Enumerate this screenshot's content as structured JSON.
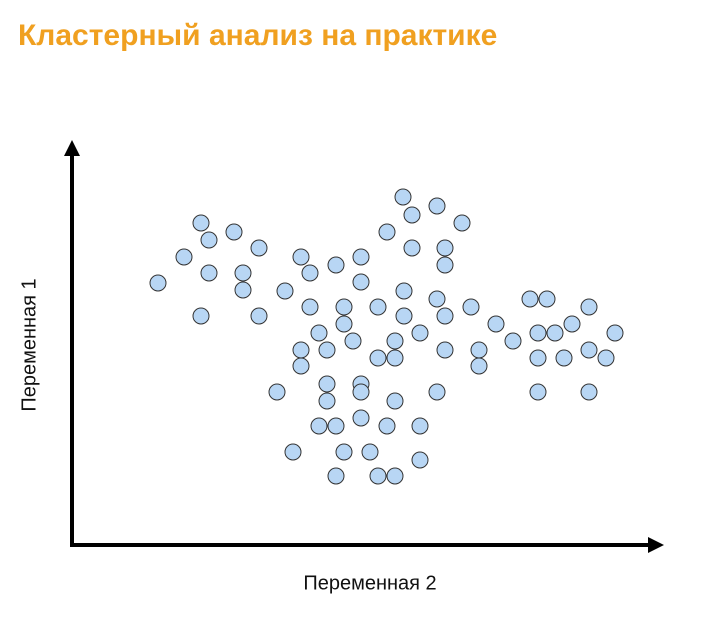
{
  "chart_data": {
    "type": "scatter",
    "title": "Кластерный анализ на практике",
    "xlabel": "Переменная 2",
    "ylabel": "Переменная 1",
    "color": "#b8d6f4",
    "xlim": [
      0,
      590
    ],
    "ylim": [
      0,
      410
    ],
    "x": [
      86,
      112,
      129,
      137,
      162,
      137,
      129,
      171,
      171,
      187,
      187,
      213,
      229,
      238,
      264,
      289,
      289,
      238,
      272,
      306,
      332,
      365,
      399,
      272,
      247,
      281,
      229,
      255,
      229,
      323,
      306,
      323,
      348,
      373,
      373,
      332,
      205,
      255,
      255,
      289,
      289,
      323,
      365,
      247,
      264,
      289,
      315,
      348,
      221,
      272,
      298,
      348,
      264,
      306,
      323,
      331,
      340,
      365,
      390,
      315,
      340,
      373,
      373,
      424,
      441,
      407,
      407,
      458,
      475,
      517,
      466,
      483,
      500,
      543,
      466,
      492,
      517,
      534,
      466,
      517
    ],
    "y": [
      262,
      288,
      322,
      305,
      313,
      272,
      229,
      272,
      255,
      297,
      229,
      254,
      288,
      272,
      280,
      288,
      263,
      238,
      238,
      238,
      254,
      246,
      238,
      221,
      212,
      204,
      195,
      195,
      179,
      204,
      187,
      187,
      212,
      229,
      195,
      229,
      153,
      161,
      144,
      161,
      153,
      144,
      153,
      119,
      119,
      127,
      119,
      119,
      93,
      93,
      93,
      85,
      69,
      69,
      69,
      348,
      330,
      339,
      322,
      313,
      297,
      297,
      280,
      221,
      204,
      195,
      179,
      246,
      246,
      238,
      212,
      212,
      221,
      212,
      187,
      187,
      195,
      187,
      153,
      153
    ]
  }
}
